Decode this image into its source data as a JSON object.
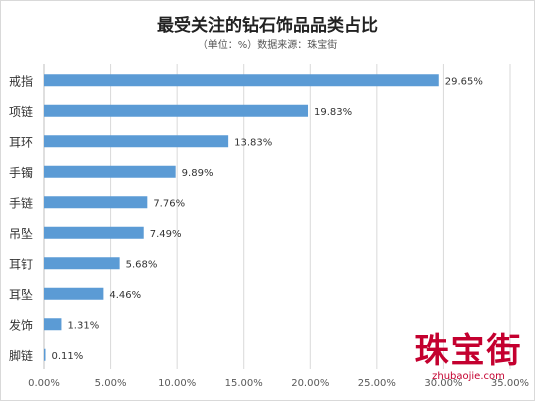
{
  "chart_data": {
    "type": "bar",
    "orientation": "horizontal",
    "title": "最受关注的钻石饰品品类占比",
    "subtitle": "（单位：%）数据来源：珠宝街",
    "categories": [
      "戒指",
      "项链",
      "耳环",
      "手镯",
      "手链",
      "吊坠",
      "耳钉",
      "耳坠",
      "发饰",
      "脚链"
    ],
    "values": [
      29.65,
      19.83,
      13.83,
      9.89,
      7.76,
      7.49,
      5.68,
      4.46,
      1.31,
      0.11
    ],
    "value_labels": [
      "29.65%",
      "19.83%",
      "13.83%",
      "9.89%",
      "7.76%",
      "7.49%",
      "5.68%",
      "4.46%",
      "1.31%",
      "0.11%"
    ],
    "xlim": [
      0,
      35
    ],
    "x_ticks": [
      0,
      5,
      10,
      15,
      20,
      25,
      30,
      35
    ],
    "x_tick_labels": [
      "0.00%",
      "5.00%",
      "10.00%",
      "15.00%",
      "20.00%",
      "25.00%",
      "30.00%",
      "35.00%"
    ],
    "grid": true,
    "legend": "none",
    "bar_color": "#5b9bd5",
    "grid_color": "#d9d9d9"
  },
  "watermark": {
    "brand": "珠宝街",
    "url": "zhubaojie.com",
    "color": "#c4002f"
  }
}
